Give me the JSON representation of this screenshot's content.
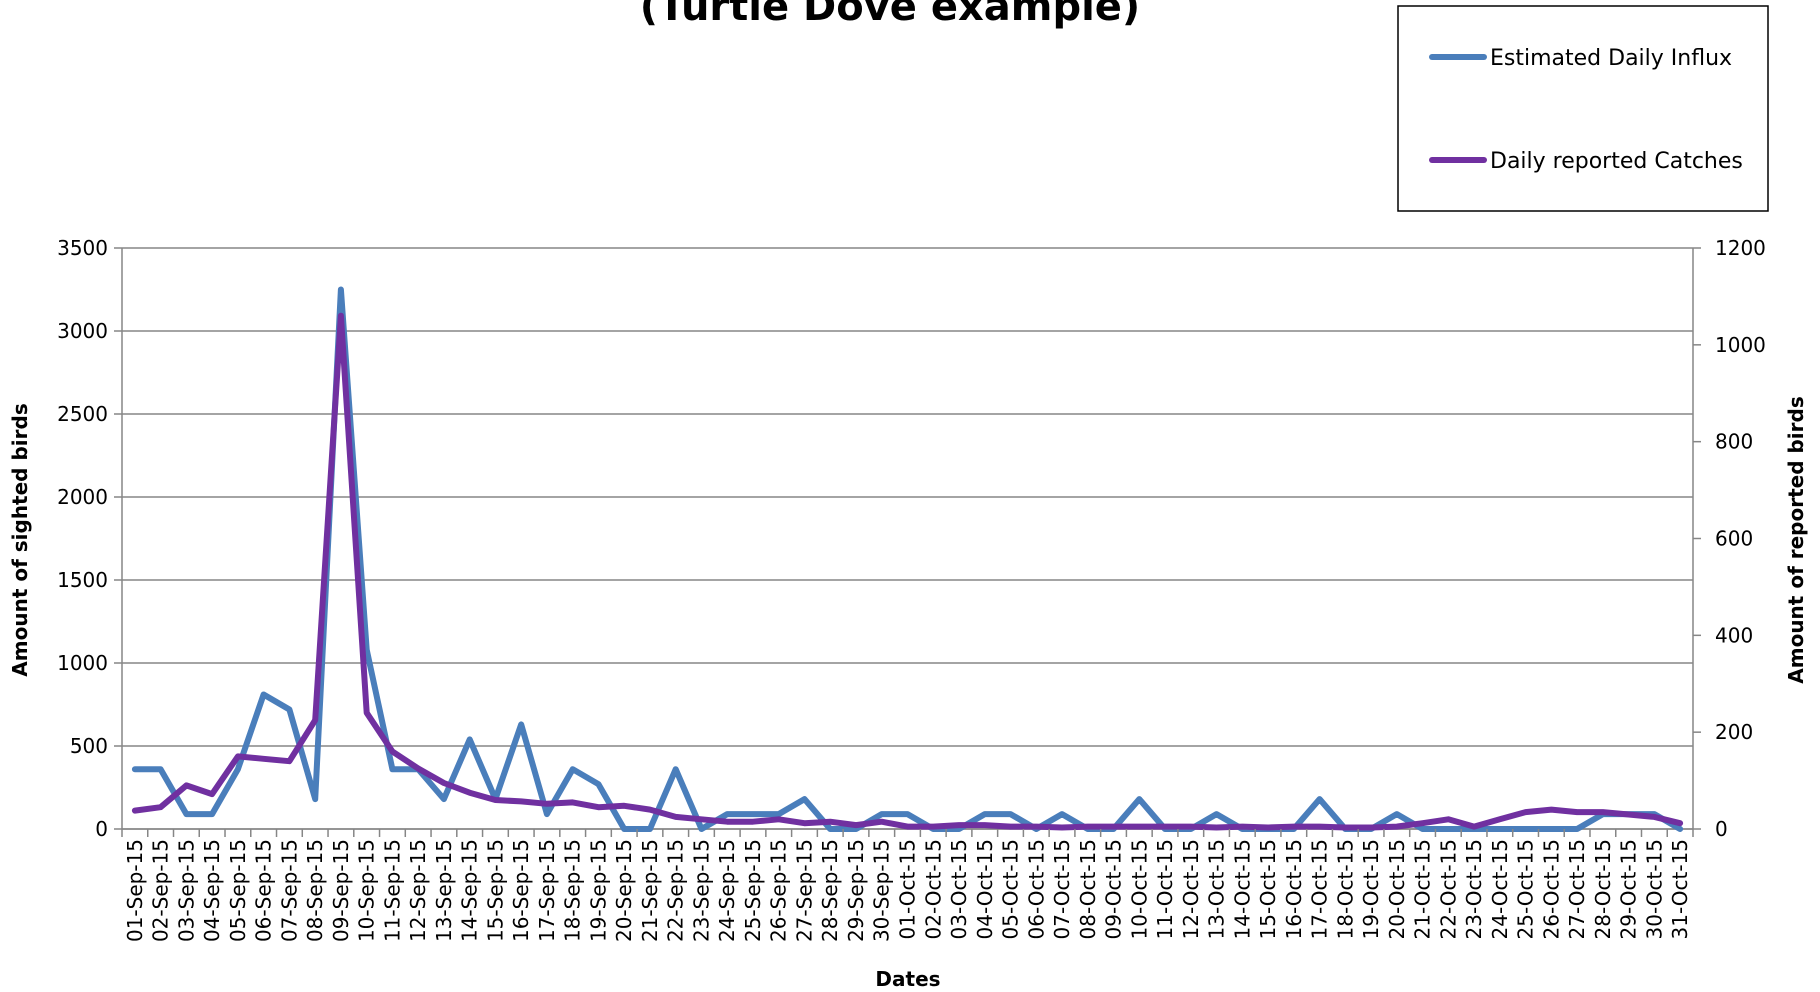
{
  "chart_data": {
    "type": "line",
    "title": "(Turtle Dove example)",
    "xlabel": "Dates",
    "ylabel_left": "Amount of sighted birds",
    "ylabel_right": "Amount of reported birds",
    "ylim_left": [
      0,
      3500
    ],
    "ylim_right": [
      0,
      1200
    ],
    "yticks_left": [
      "0",
      "500",
      "1000",
      "1500",
      "2000",
      "2500",
      "3000",
      "3500"
    ],
    "yticks_right": [
      "0",
      "200",
      "400",
      "600",
      "800",
      "1000",
      "1200"
    ],
    "grid": true,
    "legend_position": "top-right",
    "categories": [
      "01-Sep-15",
      "02-Sep-15",
      "03-Sep-15",
      "04-Sep-15",
      "05-Sep-15",
      "06-Sep-15",
      "07-Sep-15",
      "08-Sep-15",
      "09-Sep-15",
      "10-Sep-15",
      "11-Sep-15",
      "12-Sep-15",
      "13-Sep-15",
      "14-Sep-15",
      "15-Sep-15",
      "16-Sep-15",
      "17-Sep-15",
      "18-Sep-15",
      "19-Sep-15",
      "20-Sep-15",
      "21-Sep-15",
      "22-Sep-15",
      "23-Sep-15",
      "24-Sep-15",
      "25-Sep-15",
      "26-Sep-15",
      "27-Sep-15",
      "28-Sep-15",
      "29-Sep-15",
      "30-Sep-15",
      "01-Oct-15",
      "02-Oct-15",
      "03-Oct-15",
      "04-Oct-15",
      "05-Oct-15",
      "06-Oct-15",
      "07-Oct-15",
      "08-Oct-15",
      "09-Oct-15",
      "10-Oct-15",
      "11-Oct-15",
      "12-Oct-15",
      "13-Oct-15",
      "14-Oct-15",
      "15-Oct-15",
      "16-Oct-15",
      "17-Oct-15",
      "18-Oct-15",
      "19-Oct-15",
      "20-Oct-15",
      "21-Oct-15",
      "22-Oct-15",
      "23-Oct-15",
      "24-Oct-15",
      "25-Oct-15",
      "26-Oct-15",
      "27-Oct-15",
      "28-Oct-15",
      "29-Oct-15",
      "30-Oct-15",
      "31-Oct-15"
    ],
    "series": [
      {
        "name": "Estimated Daily Influx",
        "axis": "left",
        "color": "#4a7ebb",
        "values": [
          360,
          360,
          90,
          90,
          360,
          810,
          720,
          180,
          3250,
          1080,
          360,
          360,
          180,
          540,
          180,
          630,
          90,
          360,
          270,
          0,
          0,
          360,
          0,
          90,
          90,
          90,
          180,
          0,
          0,
          90,
          90,
          0,
          0,
          90,
          90,
          0,
          90,
          0,
          0,
          180,
          0,
          0,
          90,
          0,
          0,
          0,
          180,
          0,
          0,
          90,
          0,
          0,
          0,
          0,
          0,
          0,
          0,
          90,
          90,
          90,
          0
        ]
      },
      {
        "name": "Daily reported Catches",
        "axis": "right",
        "color": "#7030a0",
        "values": [
          38,
          45,
          90,
          72,
          150,
          145,
          140,
          225,
          1060,
          240,
          160,
          125,
          95,
          75,
          60,
          57,
          52,
          55,
          45,
          48,
          40,
          25,
          20,
          15,
          15,
          20,
          12,
          15,
          8,
          15,
          5,
          5,
          8,
          8,
          5,
          5,
          3,
          5,
          5,
          5,
          5,
          5,
          3,
          5,
          3,
          5,
          5,
          3,
          3,
          5,
          12,
          20,
          5,
          20,
          35,
          40,
          35,
          35,
          30,
          25,
          12
        ]
      }
    ]
  }
}
